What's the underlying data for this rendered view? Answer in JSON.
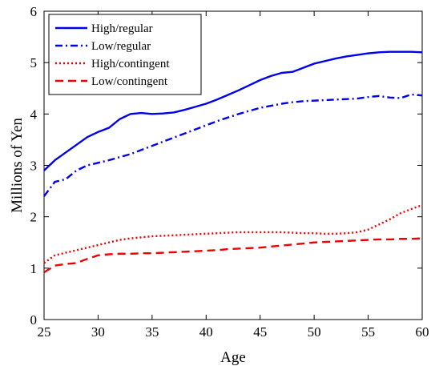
{
  "chart_data": {
    "type": "line",
    "title": "",
    "xlabel": "Age",
    "ylabel": "Millions of Yen",
    "xlim": [
      25,
      60
    ],
    "ylim": [
      0,
      6
    ],
    "xticks": [
      25,
      30,
      35,
      40,
      45,
      50,
      55,
      60
    ],
    "yticks": [
      0,
      1,
      2,
      3,
      4,
      5,
      6
    ],
    "grid": false,
    "legend_position": "top-left",
    "x": [
      25,
      26,
      27,
      28,
      29,
      30,
      31,
      32,
      33,
      34,
      35,
      36,
      37,
      38,
      39,
      40,
      41,
      42,
      43,
      44,
      45,
      46,
      47,
      48,
      49,
      50,
      51,
      52,
      53,
      54,
      55,
      56,
      57,
      58,
      59,
      60
    ],
    "series": [
      {
        "name": "High/regular",
        "color": "#0000ee",
        "style": "solid",
        "values": [
          2.9,
          3.1,
          3.25,
          3.4,
          3.55,
          3.65,
          3.73,
          3.9,
          4.0,
          4.02,
          4.0,
          4.01,
          4.03,
          4.08,
          4.14,
          4.2,
          4.28,
          4.37,
          4.46,
          4.56,
          4.66,
          4.74,
          4.8,
          4.82,
          4.9,
          4.98,
          5.03,
          5.08,
          5.12,
          5.15,
          5.18,
          5.2,
          5.21,
          5.21,
          5.21,
          5.2
        ]
      },
      {
        "name": "Low/regular",
        "color": "#0000ee",
        "style": "dashdot",
        "values": [
          2.4,
          2.68,
          2.73,
          2.9,
          3.0,
          3.05,
          3.1,
          3.16,
          3.22,
          3.3,
          3.38,
          3.46,
          3.54,
          3.62,
          3.7,
          3.78,
          3.86,
          3.93,
          4.0,
          4.06,
          4.12,
          4.16,
          4.2,
          4.23,
          4.25,
          4.26,
          4.27,
          4.28,
          4.29,
          4.3,
          4.33,
          4.35,
          4.32,
          4.31,
          4.38,
          4.36
        ]
      },
      {
        "name": "High/contingent",
        "color": "#ee0000",
        "style": "dotted",
        "values": [
          1.1,
          1.25,
          1.3,
          1.35,
          1.4,
          1.45,
          1.5,
          1.55,
          1.58,
          1.6,
          1.62,
          1.63,
          1.64,
          1.65,
          1.66,
          1.67,
          1.68,
          1.69,
          1.7,
          1.7,
          1.7,
          1.7,
          1.7,
          1.69,
          1.68,
          1.68,
          1.67,
          1.67,
          1.68,
          1.7,
          1.75,
          1.85,
          1.95,
          2.07,
          2.15,
          2.23
        ]
      },
      {
        "name": "Low/contingent",
        "color": "#ee0000",
        "style": "dashed",
        "values": [
          0.92,
          1.05,
          1.08,
          1.1,
          1.18,
          1.25,
          1.27,
          1.28,
          1.28,
          1.29,
          1.29,
          1.3,
          1.31,
          1.32,
          1.33,
          1.34,
          1.35,
          1.37,
          1.38,
          1.39,
          1.4,
          1.42,
          1.44,
          1.46,
          1.48,
          1.5,
          1.51,
          1.52,
          1.53,
          1.54,
          1.55,
          1.56,
          1.56,
          1.57,
          1.57,
          1.58
        ]
      }
    ]
  }
}
